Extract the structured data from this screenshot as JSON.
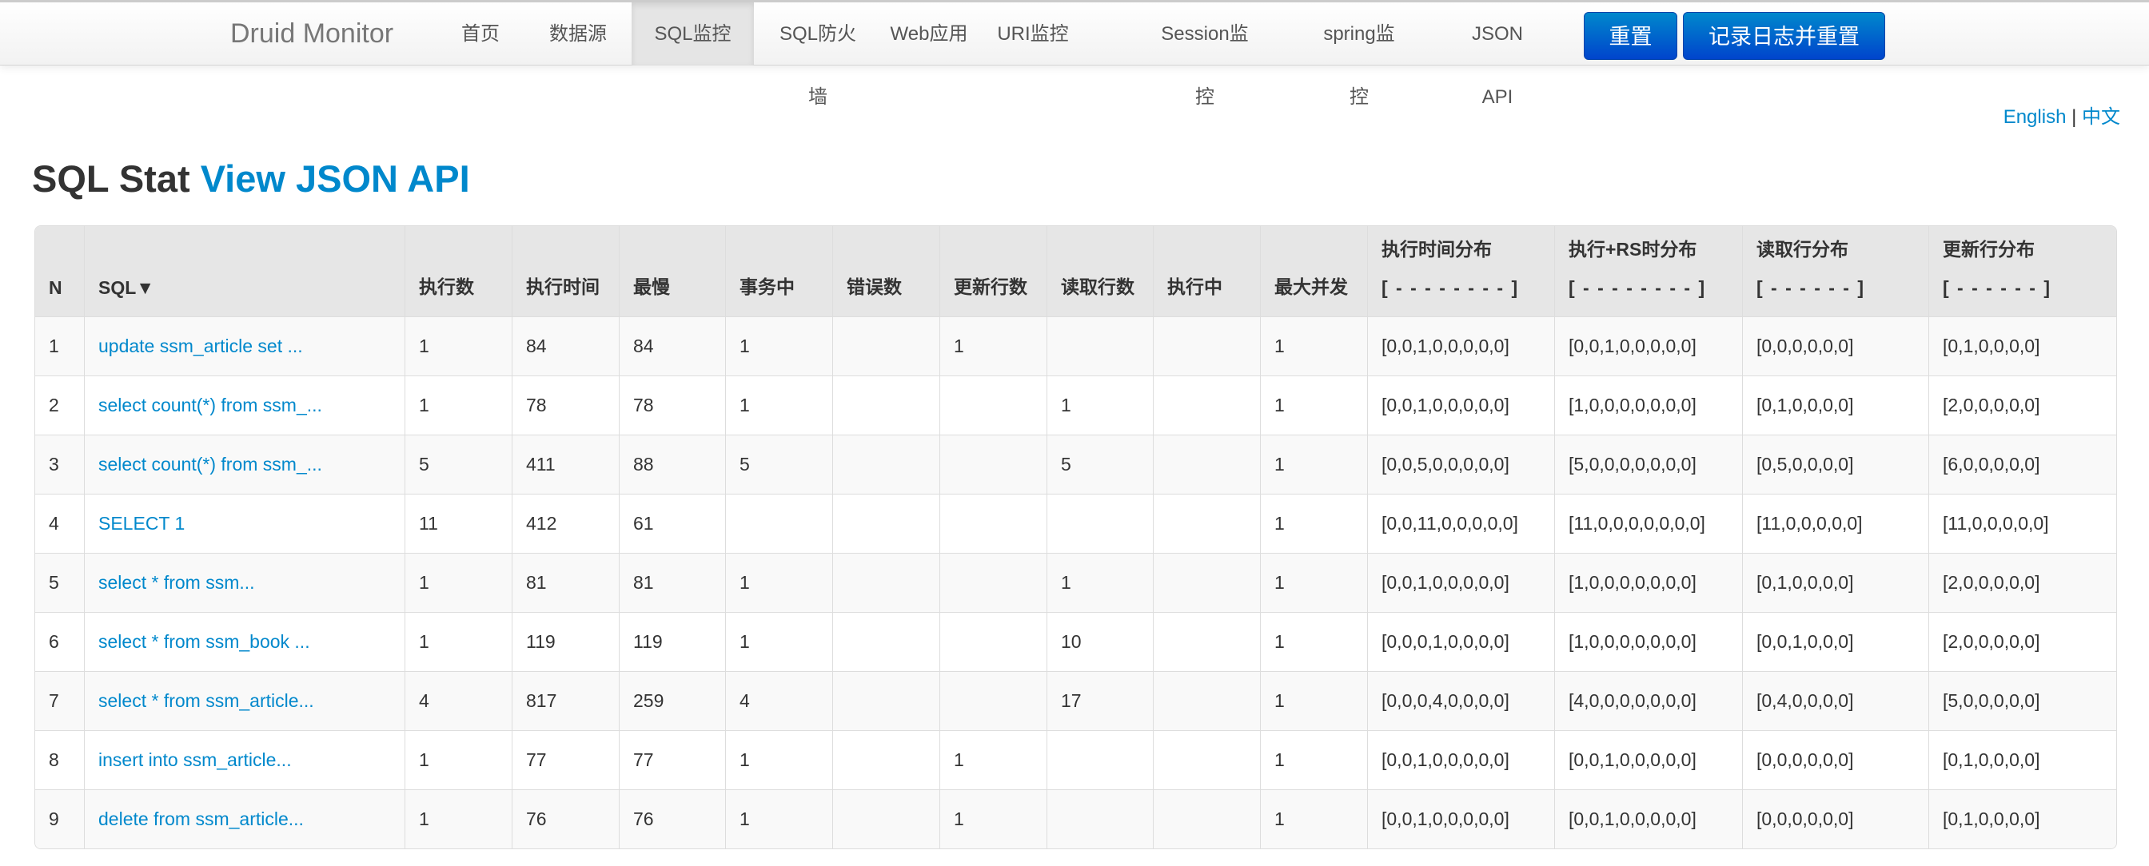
{
  "nav": {
    "brand": "Druid Monitor",
    "items": [
      "首页",
      "数据源",
      "SQL监控",
      "SQL防火墙",
      "Web应用",
      "URI监控",
      "Session监控",
      "spring监控",
      "JSON API"
    ],
    "active": "SQL监控",
    "reset": "重置",
    "log_reset": "记录日志并重置"
  },
  "lang": {
    "en": "English",
    "sep": "|",
    "zh": "中文"
  },
  "title": {
    "main": "SQL Stat",
    "link": "View JSON API"
  },
  "table": {
    "headers": [
      "N",
      "SQL▼",
      "执行数",
      "执行时间",
      "最慢",
      "事务中",
      "错误数",
      "更新行数",
      "读取行数",
      "执行中",
      "最大并发",
      {
        "t": "执行时间分布",
        "s": "[ - - - - - - - - ]"
      },
      {
        "t": "执行+RS时分布",
        "s": "[ - - - - - - - - ]"
      },
      {
        "t": "读取行分布",
        "s": "[ - - - - - - ]"
      },
      {
        "t": "更新行分布",
        "s": "[ - - - - - - ]"
      }
    ],
    "rows": [
      [
        "1",
        "update ssm_article set ...",
        "1",
        "84",
        "84",
        "1",
        "",
        "1",
        "",
        "",
        "1",
        "[0,0,1,0,0,0,0,0]",
        "[0,0,1,0,0,0,0,0]",
        "[0,0,0,0,0,0]",
        "[0,1,0,0,0,0]"
      ],
      [
        "2",
        "select count(*) from ssm_...",
        "1",
        "78",
        "78",
        "1",
        "",
        "",
        "1",
        "",
        "1",
        "[0,0,1,0,0,0,0,0]",
        "[1,0,0,0,0,0,0,0]",
        "[0,1,0,0,0,0]",
        "[2,0,0,0,0,0]"
      ],
      [
        "3",
        "select count(*) from ssm_...",
        "5",
        "411",
        "88",
        "5",
        "",
        "",
        "5",
        "",
        "1",
        "[0,0,5,0,0,0,0,0]",
        "[5,0,0,0,0,0,0,0]",
        "[0,5,0,0,0,0]",
        "[6,0,0,0,0,0]"
      ],
      [
        "4",
        "SELECT 1",
        "11",
        "412",
        "61",
        "",
        "",
        "",
        "",
        "",
        "1",
        "[0,0,11,0,0,0,0,0]",
        "[11,0,0,0,0,0,0,0]",
        "[11,0,0,0,0,0]",
        "[11,0,0,0,0,0]"
      ],
      [
        "5",
        "select * from ssm...",
        "1",
        "81",
        "81",
        "1",
        "",
        "",
        "1",
        "",
        "1",
        "[0,0,1,0,0,0,0,0]",
        "[1,0,0,0,0,0,0,0]",
        "[0,1,0,0,0,0]",
        "[2,0,0,0,0,0]"
      ],
      [
        "6",
        "select * from ssm_book ...",
        "1",
        "119",
        "119",
        "1",
        "",
        "",
        "10",
        "",
        "1",
        "[0,0,0,1,0,0,0,0]",
        "[1,0,0,0,0,0,0,0]",
        "[0,0,1,0,0,0]",
        "[2,0,0,0,0,0]"
      ],
      [
        "7",
        "select * from ssm_article...",
        "4",
        "817",
        "259",
        "4",
        "",
        "",
        "17",
        "",
        "1",
        "[0,0,0,4,0,0,0,0]",
        "[4,0,0,0,0,0,0,0]",
        "[0,4,0,0,0,0]",
        "[5,0,0,0,0,0]"
      ],
      [
        "8",
        "insert into ssm_article...",
        "1",
        "77",
        "77",
        "1",
        "",
        "1",
        "",
        "",
        "1",
        "[0,0,1,0,0,0,0,0]",
        "[0,0,1,0,0,0,0,0]",
        "[0,0,0,0,0,0]",
        "[0,1,0,0,0,0]"
      ],
      [
        "9",
        "delete from ssm_article...",
        "1",
        "76",
        "76",
        "1",
        "",
        "1",
        "",
        "",
        "1",
        "[0,0,1,0,0,0,0,0]",
        "[0,0,1,0,0,0,0,0]",
        "[0,0,0,0,0,0]",
        "[0,1,0,0,0,0]"
      ]
    ]
  }
}
